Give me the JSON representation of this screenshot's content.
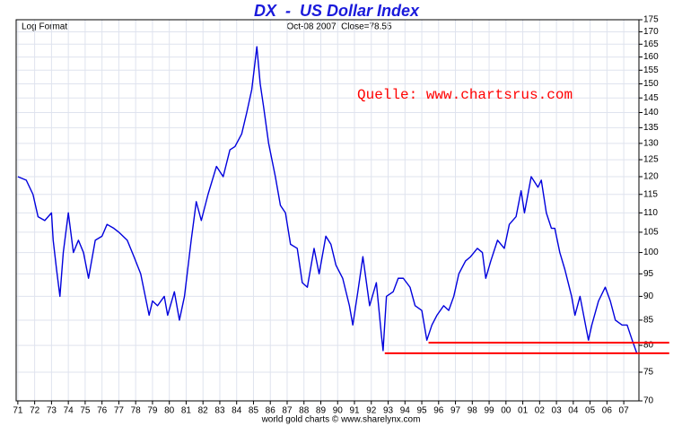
{
  "chart_data": {
    "type": "line",
    "title": "DX  -  US Dollar Index",
    "subtitle_left": "Log Format",
    "subtitle_center": "Oct-08 2007  Close=78.55",
    "annotation": "Quelle: www.chartsrus.com",
    "footer": "world gold charts © www.sharelynx.com",
    "log_scale": true,
    "grid": true,
    "xlim": [
      1970.9,
      2007.9
    ],
    "ylim": [
      70,
      175
    ],
    "yticks": [
      70,
      75,
      80,
      85,
      90,
      95,
      100,
      105,
      110,
      115,
      120,
      125,
      130,
      135,
      140,
      145,
      150,
      155,
      160,
      165,
      170,
      175
    ],
    "xticks": [
      {
        "value": 1971,
        "label": "71"
      },
      {
        "value": 1972,
        "label": "72"
      },
      {
        "value": 1973,
        "label": "73"
      },
      {
        "value": 1974,
        "label": "74"
      },
      {
        "value": 1975,
        "label": "75"
      },
      {
        "value": 1976,
        "label": "76"
      },
      {
        "value": 1977,
        "label": "77"
      },
      {
        "value": 1978,
        "label": "78"
      },
      {
        "value": 1979,
        "label": "79"
      },
      {
        "value": 1980,
        "label": "80"
      },
      {
        "value": 1981,
        "label": "81"
      },
      {
        "value": 1982,
        "label": "82"
      },
      {
        "value": 1983,
        "label": "83"
      },
      {
        "value": 1984,
        "label": "84"
      },
      {
        "value": 1985,
        "label": "85"
      },
      {
        "value": 1986,
        "label": "86"
      },
      {
        "value": 1987,
        "label": "87"
      },
      {
        "value": 1988,
        "label": "88"
      },
      {
        "value": 1989,
        "label": "89"
      },
      {
        "value": 1990,
        "label": "90"
      },
      {
        "value": 1991,
        "label": "91"
      },
      {
        "value": 1992,
        "label": "92"
      },
      {
        "value": 1993,
        "label": "93"
      },
      {
        "value": 1994,
        "label": "94"
      },
      {
        "value": 1995,
        "label": "95"
      },
      {
        "value": 1996,
        "label": "96"
      },
      {
        "value": 1997,
        "label": "97"
      },
      {
        "value": 1998,
        "label": "98"
      },
      {
        "value": 1999,
        "label": "99"
      },
      {
        "value": 2000,
        "label": "00"
      },
      {
        "value": 2001,
        "label": "01"
      },
      {
        "value": 2002,
        "label": "02"
      },
      {
        "value": 2003,
        "label": "03"
      },
      {
        "value": 2004,
        "label": "04"
      },
      {
        "value": 2005,
        "label": "05"
      },
      {
        "value": 2006,
        "label": "06"
      },
      {
        "value": 2007,
        "label": "07"
      }
    ],
    "color": "#0000dd",
    "x": [
      1971.0,
      1971.5,
      1971.9,
      1972.2,
      1972.6,
      1973.0,
      1973.1,
      1973.3,
      1973.5,
      1973.7,
      1974.0,
      1974.3,
      1974.6,
      1974.9,
      1975.2,
      1975.6,
      1976.0,
      1976.3,
      1976.7,
      1977.0,
      1977.5,
      1977.9,
      1978.3,
      1978.8,
      1979.0,
      1979.3,
      1979.7,
      1979.9,
      1980.3,
      1980.6,
      1980.9,
      1981.3,
      1981.6,
      1981.9,
      1982.3,
      1982.8,
      1983.2,
      1983.6,
      1983.9,
      1984.3,
      1984.6,
      1984.9,
      1985.2,
      1985.4,
      1985.6,
      1985.9,
      1986.3,
      1986.6,
      1986.9,
      1987.2,
      1987.6,
      1987.9,
      1988.2,
      1988.6,
      1988.9,
      1989.3,
      1989.6,
      1989.9,
      1990.3,
      1990.7,
      1990.9,
      1991.2,
      1991.5,
      1991.9,
      1992.3,
      1992.6,
      1992.7,
      1992.9,
      1993.3,
      1993.6,
      1993.9,
      1994.3,
      1994.6,
      1995.0,
      1995.3,
      1995.6,
      1995.9,
      1996.3,
      1996.6,
      1996.9,
      1997.2,
      1997.6,
      1997.9,
      1998.3,
      1998.6,
      1998.8,
      1999.1,
      1999.5,
      1999.9,
      2000.2,
      2000.6,
      2000.9,
      2001.1,
      2001.5,
      2001.9,
      2002.1,
      2002.4,
      2002.7,
      2002.9,
      2003.2,
      2003.5,
      2003.9,
      2004.1,
      2004.4,
      2004.9,
      2005.1,
      2005.5,
      2005.9,
      2006.2,
      2006.5,
      2006.9,
      2007.2,
      2007.5,
      2007.77
    ],
    "values": [
      120,
      119,
      115,
      109,
      108,
      110,
      103,
      96,
      90,
      100,
      110,
      100,
      103,
      100,
      94,
      103,
      104,
      107,
      106,
      105,
      103,
      99,
      95,
      86,
      89,
      88,
      90,
      86,
      91,
      85,
      90,
      103,
      113,
      108,
      115,
      123,
      120,
      128,
      129,
      133,
      140,
      148,
      164,
      150,
      142,
      130,
      120,
      112,
      110,
      102,
      101,
      93,
      92,
      101,
      95,
      104,
      102,
      97,
      94,
      88,
      84,
      91,
      99,
      88,
      93,
      82,
      79,
      90,
      91,
      94,
      94,
      92,
      88,
      87,
      81,
      84,
      86,
      88,
      87,
      90,
      95,
      98,
      99,
      101,
      100,
      94,
      98,
      103,
      101,
      107,
      109,
      116,
      110,
      120,
      117,
      119,
      110,
      106,
      106,
      100,
      96,
      90,
      86,
      90,
      81,
      84,
      89,
      92,
      89,
      85,
      84,
      84,
      81,
      78.55
    ],
    "reference_lines": [
      {
        "y": 80.5,
        "x": [
          1995.4,
          2009.7
        ],
        "color": "#ff0000"
      },
      {
        "y": 78.5,
        "x": [
          1992.8,
          2009.7
        ],
        "color": "#ff0000"
      }
    ]
  }
}
